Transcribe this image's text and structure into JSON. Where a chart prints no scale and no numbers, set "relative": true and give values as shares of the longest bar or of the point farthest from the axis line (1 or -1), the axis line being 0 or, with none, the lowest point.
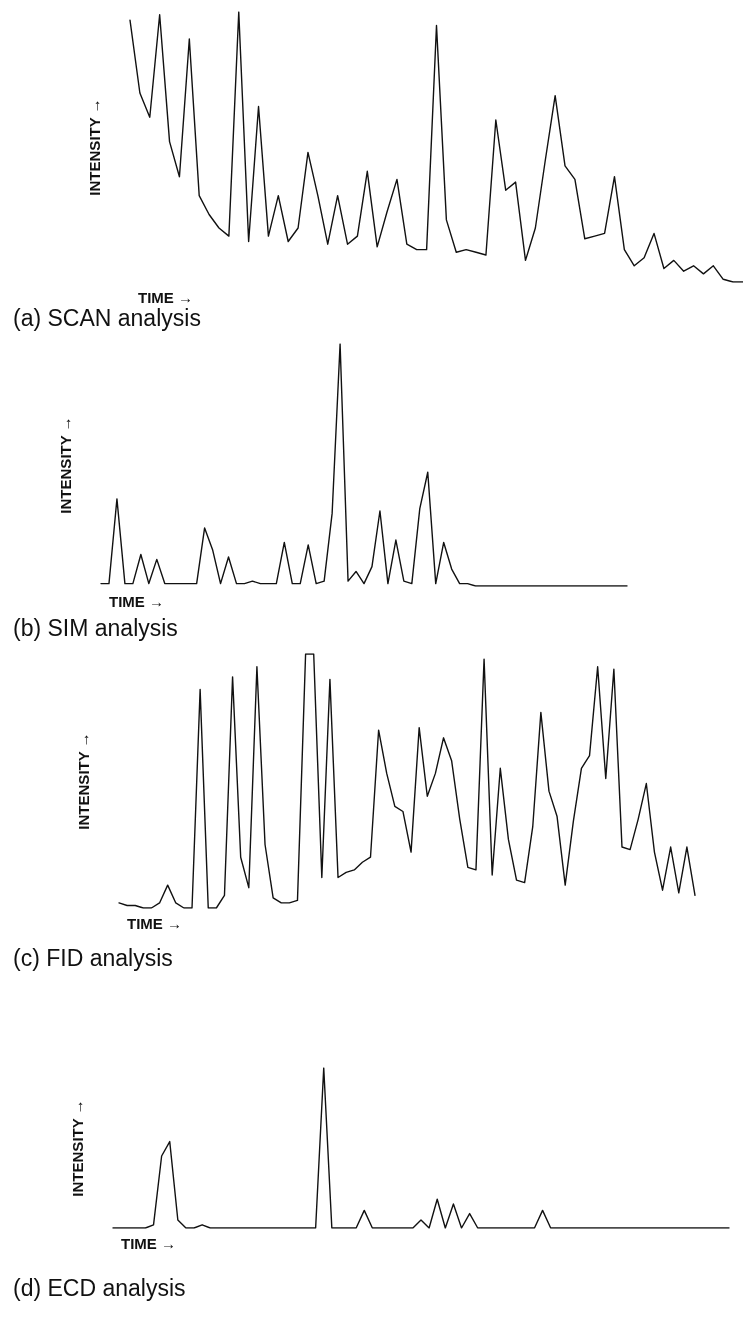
{
  "chart_data": [
    {
      "type": "line",
      "title": "(a) SCAN analysis",
      "xlabel": "TIME →",
      "ylabel": "INTENSITY →",
      "relative": true,
      "color": "#111111",
      "categories": [
        null,
        null,
        null,
        null,
        null,
        null,
        null,
        null,
        null,
        null,
        null,
        null,
        null,
        null,
        null,
        null,
        null,
        null,
        null,
        null,
        null,
        null,
        null,
        null,
        null,
        null,
        null,
        null,
        null,
        null,
        null,
        null,
        null,
        null,
        null,
        null,
        null,
        null,
        null,
        null,
        null,
        null,
        null,
        null,
        null,
        null,
        null,
        null,
        null,
        null,
        null,
        null,
        null,
        null,
        null,
        null,
        null,
        null,
        null,
        null,
        null,
        null,
        null
      ],
      "values": [
        0.97,
        0.7,
        0.61,
        0.99,
        0.52,
        0.39,
        0.9,
        0.32,
        0.25,
        0.2,
        0.17,
        1.0,
        0.15,
        0.65,
        0.17,
        0.32,
        0.15,
        0.2,
        0.48,
        0.32,
        0.14,
        0.32,
        0.14,
        0.17,
        0.41,
        0.13,
        0.26,
        0.38,
        0.14,
        0.12,
        0.12,
        0.95,
        0.23,
        0.11,
        0.12,
        0.11,
        0.1,
        0.6,
        0.34,
        0.37,
        0.08,
        0.2,
        0.45,
        0.69,
        0.43,
        0.38,
        0.16,
        0.17,
        0.18,
        0.39,
        0.12,
        0.06,
        0.09,
        0.18,
        0.05,
        0.08,
        0.04,
        0.06,
        0.03,
        0.06,
        0.01,
        0,
        0
      ]
    },
    {
      "type": "line",
      "title": "(b) SIM analysis",
      "xlabel": "TIME →",
      "ylabel": "INTENSITY →",
      "relative": true,
      "color": "#111111",
      "categories": [
        null,
        null,
        null,
        null,
        null,
        null,
        null,
        null,
        null,
        null,
        null,
        null,
        null,
        null,
        null,
        null,
        null,
        null,
        null,
        null,
        null,
        null,
        null,
        null,
        null,
        null,
        null,
        null,
        null,
        null,
        null,
        null,
        null,
        null,
        null,
        null,
        null,
        null,
        null,
        null,
        null,
        null,
        null,
        null,
        null,
        null,
        null,
        null,
        null,
        null,
        null,
        null,
        null,
        null,
        null,
        null,
        null,
        null,
        null,
        null,
        null,
        null,
        null,
        null,
        null,
        null,
        null
      ],
      "values": [
        0.01,
        0.01,
        0.36,
        0.01,
        0.01,
        0.13,
        0.01,
        0.11,
        0.01,
        0.01,
        0.01,
        0.01,
        0.01,
        0.24,
        0.15,
        0.01,
        0.12,
        0.01,
        0.01,
        0.02,
        0.01,
        0.01,
        0.01,
        0.18,
        0.01,
        0.01,
        0.17,
        0.01,
        0.02,
        0.3,
        1.0,
        0.02,
        0.06,
        0.01,
        0.08,
        0.31,
        0.01,
        0.19,
        0.02,
        0.01,
        0.32,
        0.47,
        0.01,
        0.18,
        0.07,
        0.01,
        0.01,
        0,
        0,
        0,
        0,
        0,
        0,
        0,
        0,
        0,
        0,
        0,
        0,
        0,
        0,
        0,
        0,
        0,
        0,
        0,
        0
      ]
    },
    {
      "type": "line",
      "title": "(c) FID analysis",
      "xlabel": "TIME →",
      "ylabel": "INTENSITY →",
      "relative": true,
      "color": "#111111",
      "categories": [
        null,
        null,
        null,
        null,
        null,
        null,
        null,
        null,
        null,
        null,
        null,
        null,
        null,
        null,
        null,
        null,
        null,
        null,
        null,
        null,
        null,
        null,
        null,
        null,
        null,
        null,
        null,
        null,
        null,
        null,
        null,
        null,
        null,
        null,
        null,
        null,
        null,
        null,
        null,
        null,
        null,
        null,
        null,
        null,
        null,
        null,
        null,
        null,
        null,
        null,
        null,
        null,
        null,
        null,
        null,
        null,
        null,
        null,
        null,
        null,
        null,
        null,
        null,
        null,
        null,
        null,
        null,
        null,
        null,
        null,
        null,
        null
      ],
      "values": [
        0.02,
        0.01,
        0.01,
        0,
        0,
        0.02,
        0.09,
        0.02,
        0,
        0,
        0.86,
        0,
        0,
        0.05,
        0.91,
        0.2,
        0.08,
        0.95,
        0.25,
        0.04,
        0.02,
        0.02,
        0.03,
        1.0,
        1.0,
        0.12,
        0.9,
        0.12,
        0.14,
        0.15,
        0.18,
        0.2,
        0.7,
        0.53,
        0.4,
        0.38,
        0.22,
        0.71,
        0.44,
        0.53,
        0.67,
        0.58,
        0.35,
        0.16,
        0.15,
        0.98,
        0.13,
        0.55,
        0.27,
        0.11,
        0.1,
        0.32,
        0.77,
        0.46,
        0.36,
        0.09,
        0.34,
        0.55,
        0.6,
        0.95,
        0.51,
        0.94,
        0.24,
        0.23,
        0.35,
        0.49,
        0.22,
        0.07,
        0.24,
        0.06,
        0.24,
        0.05
      ]
    },
    {
      "type": "line",
      "title": "(d) ECD analysis",
      "xlabel": "TIME →",
      "ylabel": "INTENSITY →",
      "relative": true,
      "color": "#111111",
      "categories": [
        null,
        null,
        null,
        null,
        null,
        null,
        null,
        null,
        null,
        null,
        null,
        null,
        null,
        null,
        null,
        null,
        null,
        null,
        null,
        null,
        null,
        null,
        null,
        null,
        null,
        null,
        null,
        null,
        null,
        null,
        null,
        null,
        null,
        null,
        null,
        null,
        null,
        null,
        null,
        null,
        null,
        null,
        null,
        null,
        null,
        null,
        null,
        null,
        null,
        null,
        null,
        null,
        null,
        null,
        null,
        null,
        null,
        null,
        null,
        null,
        null,
        null,
        null,
        null,
        null,
        null,
        null,
        null,
        null,
        null,
        null,
        null,
        null,
        null,
        null,
        null,
        null
      ],
      "values": [
        0,
        0,
        0,
        0,
        0,
        0.02,
        0.45,
        0.54,
        0.05,
        0,
        0,
        0.02,
        0,
        0,
        0,
        0,
        0,
        0,
        0,
        0,
        0,
        0,
        0,
        0,
        0,
        0,
        1,
        0,
        0,
        0,
        0,
        0.11,
        0,
        0,
        0,
        0,
        0,
        0,
        0.05,
        0,
        0.18,
        0,
        0.15,
        0,
        0.09,
        0,
        0,
        0,
        0,
        0,
        0,
        0,
        0,
        0.11,
        0,
        0,
        0,
        0,
        0,
        0,
        0,
        0,
        0,
        0,
        0,
        0,
        0,
        0,
        0,
        0,
        0,
        0,
        0,
        0,
        0,
        0,
        0
      ]
    }
  ]
}
